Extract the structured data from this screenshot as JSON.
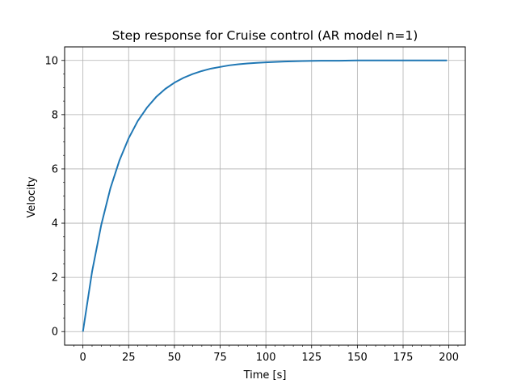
{
  "chart_data": {
    "type": "line",
    "title": "Step response for Cruise control (AR model n=1)",
    "xlabel": "Time [s]",
    "ylabel": "Velocity",
    "xlim": [
      -10,
      209
    ],
    "ylim": [
      -0.5,
      10.5
    ],
    "xticks": [
      0,
      25,
      50,
      75,
      100,
      125,
      150,
      175,
      200
    ],
    "yticks": [
      0,
      2,
      4,
      6,
      8,
      10
    ],
    "grid": true,
    "line_color": "#1f77b4",
    "series": [
      {
        "x": [
          0,
          5,
          10,
          15,
          20,
          25,
          30,
          35,
          40,
          45,
          50,
          55,
          60,
          65,
          70,
          75,
          80,
          85,
          90,
          95,
          100,
          110,
          120,
          130,
          140,
          150,
          160,
          170,
          180,
          190,
          199
        ],
        "values": [
          0,
          2.21,
          3.93,
          5.28,
          6.32,
          7.13,
          7.77,
          8.26,
          8.65,
          8.95,
          9.18,
          9.36,
          9.5,
          9.61,
          9.7,
          9.76,
          9.82,
          9.86,
          9.89,
          9.91,
          9.93,
          9.96,
          9.98,
          9.99,
          9.99,
          10.0,
          10.0,
          10.0,
          10.0,
          10.0,
          10.0
        ]
      }
    ]
  }
}
